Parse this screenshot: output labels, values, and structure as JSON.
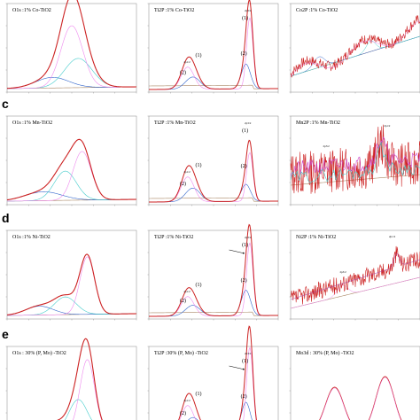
{
  "figure": {
    "row_labels": [
      "c",
      "d",
      "e"
    ]
  },
  "chart_data": [
    {
      "type": "line",
      "title": "O1s :1% Co-TiO2",
      "series": [
        {
          "color": "#cc2222",
          "values": []
        },
        {
          "color": "#3366cc",
          "values": []
        },
        {
          "color": "#ee88ee",
          "values": []
        },
        {
          "color": "#44cccc",
          "values": []
        },
        {
          "color": "#aa8866",
          "values": []
        }
      ],
      "peaks": [
        {
          "center": 530.5,
          "height": 1.0,
          "width": 1.1,
          "color": "#ee88ee"
        },
        {
          "center": 532.3,
          "height": 0.3,
          "width": 1.3,
          "color": "#3366cc"
        },
        {
          "center": 533.8,
          "height": 0.1,
          "width": 1.5,
          "color": "#44cccc"
        }
      ],
      "annotations": []
    },
    {
      "type": "line",
      "title": "Ti2P :1% Co-TiO2",
      "annotations": [
        "(1)",
        "(2)",
        "(1)",
        "(2)",
        "2p1/2",
        "2p3/2"
      ]
    },
    {
      "type": "line",
      "title": "Co2P :1% Co-TiO2",
      "annotations": []
    },
    {
      "type": "line",
      "title": "O1s :1% Mn-TiO2",
      "annotations": []
    },
    {
      "type": "line",
      "title": "Ti2P :1% Mn-TiO2",
      "annotations": [
        "(1)",
        "(2)",
        "(1)",
        "(2)",
        "2p1/2",
        "2p3/2"
      ]
    },
    {
      "type": "line",
      "title": "Mn2P :1% Mn-TiO2",
      "annotations": [
        "2p3/2",
        "2p1/2"
      ]
    },
    {
      "type": "line",
      "title": "O1s :1% Ni-TiO2",
      "annotations": []
    },
    {
      "type": "line",
      "title": "Ti2P :1% Ni-TiO2",
      "annotations": [
        "(1)",
        "(2)",
        "(1)",
        "(2)",
        "2p1/2",
        "2p3/2"
      ]
    },
    {
      "type": "line",
      "title": "Ni2P :1% Ni-TiO2",
      "annotations": [
        "2p3/2",
        "2p1/2"
      ]
    },
    {
      "type": "line",
      "title": "O1s : 30% (P, Mo) -TiO2",
      "annotations": []
    },
    {
      "type": "line",
      "title": "Ti2P :30% (P, Mo) -TiO2",
      "annotations": [
        "(1)",
        "(2)",
        "(1)",
        "(2)",
        "2p1/2",
        "2p3/2"
      ]
    },
    {
      "type": "line",
      "title": "Mo3d : 30% (P, Mo) -TiO2",
      "annotations": []
    }
  ]
}
